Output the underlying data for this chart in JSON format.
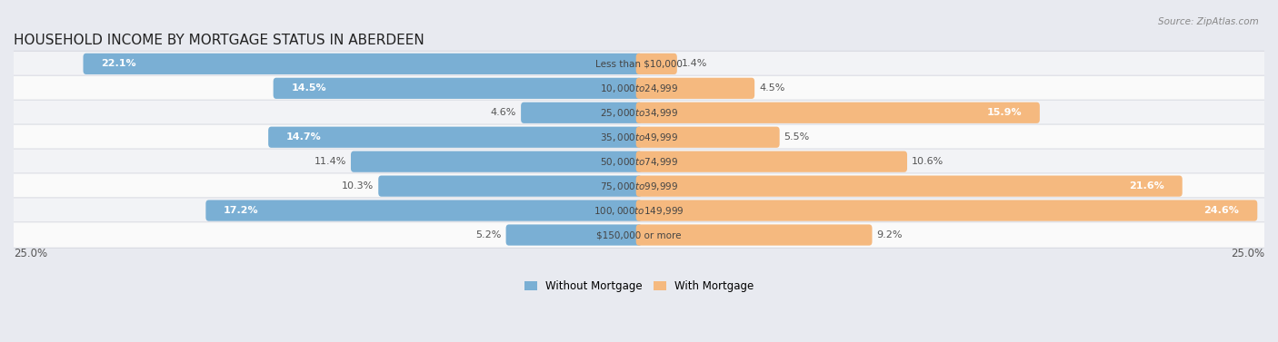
{
  "title": "HOUSEHOLD INCOME BY MORTGAGE STATUS IN ABERDEEN",
  "source": "Source: ZipAtlas.com",
  "categories": [
    "Less than $10,000",
    "$10,000 to $24,999",
    "$25,000 to $34,999",
    "$35,000 to $49,999",
    "$50,000 to $74,999",
    "$75,000 to $99,999",
    "$100,000 to $149,999",
    "$150,000 or more"
  ],
  "without_mortgage": [
    22.1,
    14.5,
    4.6,
    14.7,
    11.4,
    10.3,
    17.2,
    5.2
  ],
  "with_mortgage": [
    1.4,
    4.5,
    15.9,
    5.5,
    10.6,
    21.6,
    24.6,
    9.2
  ],
  "color_without": "#7aafd4",
  "color_with": "#f5b97f",
  "max_val": 25.0,
  "legend_without": "Without Mortgage",
  "legend_with": "With Mortgage",
  "title_fontsize": 11,
  "label_fontsize": 8.0,
  "category_fontsize": 7.5,
  "bg_color": "#e8eaf0"
}
